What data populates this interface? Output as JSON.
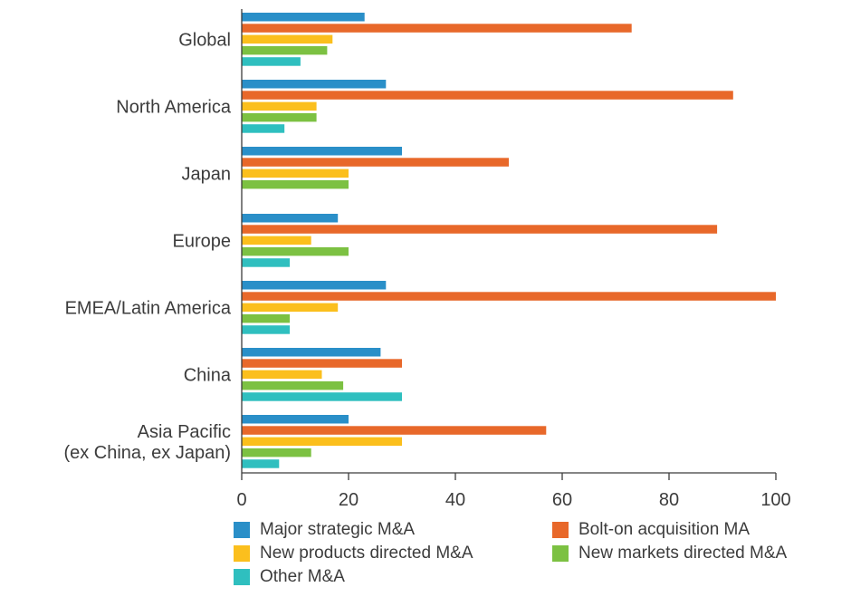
{
  "chart_data": {
    "type": "bar",
    "orientation": "horizontal",
    "title": "",
    "xlabel": "",
    "ylabel": "",
    "xlim": [
      0,
      100
    ],
    "x_ticks": [
      0,
      20,
      40,
      60,
      80,
      100
    ],
    "grid": false,
    "legend_position": "bottom",
    "categories": [
      "Global",
      "North America",
      "Japan",
      "Europe",
      "EMEA/Latin America",
      "China",
      "Asia Pacific\n(ex China, ex Japan)"
    ],
    "series": [
      {
        "name": "Major strategic M&A",
        "color": "#2a8fc8",
        "values": [
          23,
          27,
          30,
          18,
          27,
          26,
          20
        ]
      },
      {
        "name": "Bolt-on acquisition MA",
        "color": "#e8682a",
        "values": [
          73,
          92,
          50,
          89,
          100,
          30,
          57
        ]
      },
      {
        "name": "New products directed M&A",
        "color": "#fbbf1d",
        "values": [
          17,
          14,
          20,
          13,
          18,
          15,
          30
        ]
      },
      {
        "name": "New markets directed M&A",
        "color": "#7cc142",
        "values": [
          16,
          14,
          20,
          20,
          9,
          19,
          13
        ]
      },
      {
        "name": "Other M&A",
        "color": "#2fbfbf",
        "values": [
          11,
          8,
          0,
          9,
          9,
          30,
          7
        ]
      }
    ]
  }
}
